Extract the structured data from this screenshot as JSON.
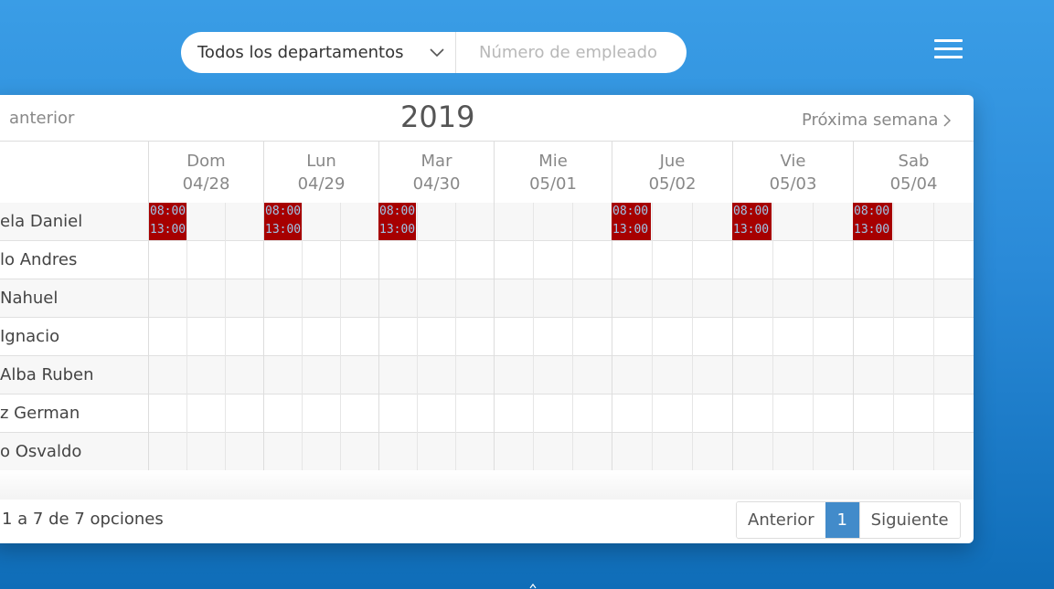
{
  "filters": {
    "department_label": "Todos los departamentos",
    "employee_placeholder": "Número de empleado"
  },
  "nav": {
    "prev_week": "anterior",
    "year": "2019",
    "next_week": "Próxima semana"
  },
  "days": [
    {
      "name": "Dom",
      "date": "04/28"
    },
    {
      "name": "Lun",
      "date": "04/29"
    },
    {
      "name": "Mar",
      "date": "04/30"
    },
    {
      "name": "Mie",
      "date": "05/01"
    },
    {
      "name": "Jue",
      "date": "05/02"
    },
    {
      "name": "Vie",
      "date": "05/03"
    },
    {
      "name": "Sab",
      "date": "05/04"
    }
  ],
  "employees": [
    {
      "name": "ela Daniel"
    },
    {
      "name": "lo Andres"
    },
    {
      "name": "Nahuel"
    },
    {
      "name": " Ignacio"
    },
    {
      "name": " Alba Ruben"
    },
    {
      "name": "z German"
    },
    {
      "name": "o Osvaldo"
    }
  ],
  "shifts": [
    {
      "day": "Dom",
      "start": "08:00",
      "end": "13:00"
    },
    {
      "day": "Lun",
      "start": "08:00",
      "end": "13:00"
    },
    {
      "day": "Mar",
      "start": "08:00",
      "end": "13:00"
    },
    {
      "day": "Jue",
      "start": "08:00",
      "end": "13:00"
    },
    {
      "day": "Vie",
      "start": "08:00",
      "end": "13:00"
    },
    {
      "day": "Sab",
      "start": "08:00",
      "end": "13:00"
    }
  ],
  "footer": {
    "summary": "1 a 7 de 7 opciones",
    "prev_label": "Anterior",
    "current_page": "1",
    "next_label": "Siguiente"
  },
  "colors": {
    "shift_bg": "#a70000",
    "shift_text": "#9ec6e8",
    "pager_active": "#428bca"
  }
}
